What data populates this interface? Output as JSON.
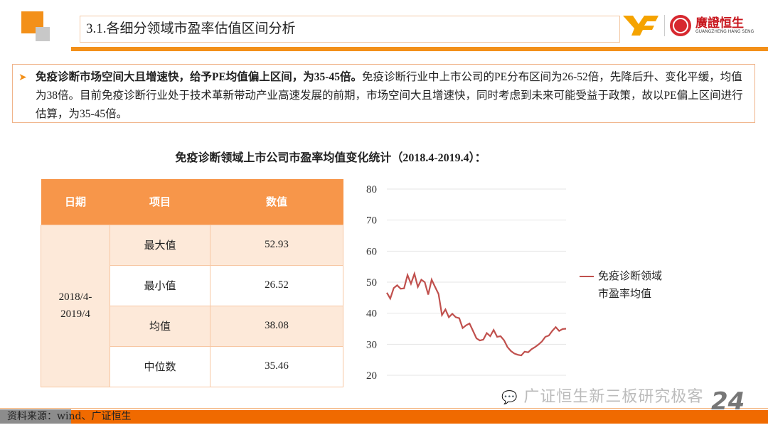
{
  "header": {
    "title": "3.1.各细分领域市盈率估值区间分析",
    "logo_text": "廣證恒生",
    "logo_sub": "GUANGZHENG HANG SENG"
  },
  "callout": {
    "bold": "免疫诊断市场空间大且增速快，给予PE均值偏上区间，为35-45倍。",
    "body": "免疫诊断行业中上市公司的PE分布区间为26-52倍，先降后升、变化平缓，均值为38倍。目前免疫诊断行业处于技术革新带动产业高速发展的前期，市场空间大且增速快，同时考虑到未来可能受益于政策，故以PE偏上区间进行估算，为35-45倍。"
  },
  "chart_title": "免疫诊断领域上市公司市盈率均值变化统计（2018.4-2019.4）：",
  "table": {
    "headers": [
      "日期",
      "项目",
      "数值"
    ],
    "date": "2018/4-2019/4",
    "rows": [
      {
        "item": "最大值",
        "value": "52.93"
      },
      {
        "item": "最小值",
        "value": "26.52"
      },
      {
        "item": "均值",
        "value": "38.08"
      },
      {
        "item": "中位数",
        "value": "35.46"
      }
    ]
  },
  "chart_data": {
    "type": "line",
    "ylim": [
      20,
      80
    ],
    "yticks": [
      "80",
      "70",
      "60",
      "50",
      "40",
      "30",
      "20"
    ],
    "grid": true,
    "legend_position": "right",
    "series": [
      {
        "name": "免疫诊断领域市盈率均值",
        "color": "#c0504d",
        "values": [
          46.6,
          44.7,
          48.1,
          49.0,
          47.9,
          48.0,
          52.3,
          49.5,
          52.7,
          48.5,
          50.8,
          50.0,
          46.0,
          50.8,
          48.5,
          46.2,
          39.4,
          41.2,
          38.7,
          39.8,
          38.7,
          38.4,
          35.2,
          36.1,
          36.7,
          34.3,
          31.9,
          31.2,
          31.5,
          33.6,
          32.6,
          34.6,
          32.4,
          32.6,
          31.3,
          29.1,
          27.8,
          27.0,
          26.6,
          26.4,
          27.6,
          27.4,
          28.4,
          29.1,
          29.9,
          30.9,
          32.4,
          32.8,
          34.3,
          35.5,
          34.3,
          34.9,
          35.0
        ]
      }
    ],
    "legend_lines": [
      "免疫诊断领域",
      "市盈率均值"
    ]
  },
  "watermark": "广证恒生新三板研究极客",
  "page_number": "24",
  "footer": {
    "source": "资料来源：wind、广证恒生"
  },
  "colors": {
    "accent": "#f39019",
    "footer": "#f06a00",
    "table_header": "#f7964a"
  }
}
